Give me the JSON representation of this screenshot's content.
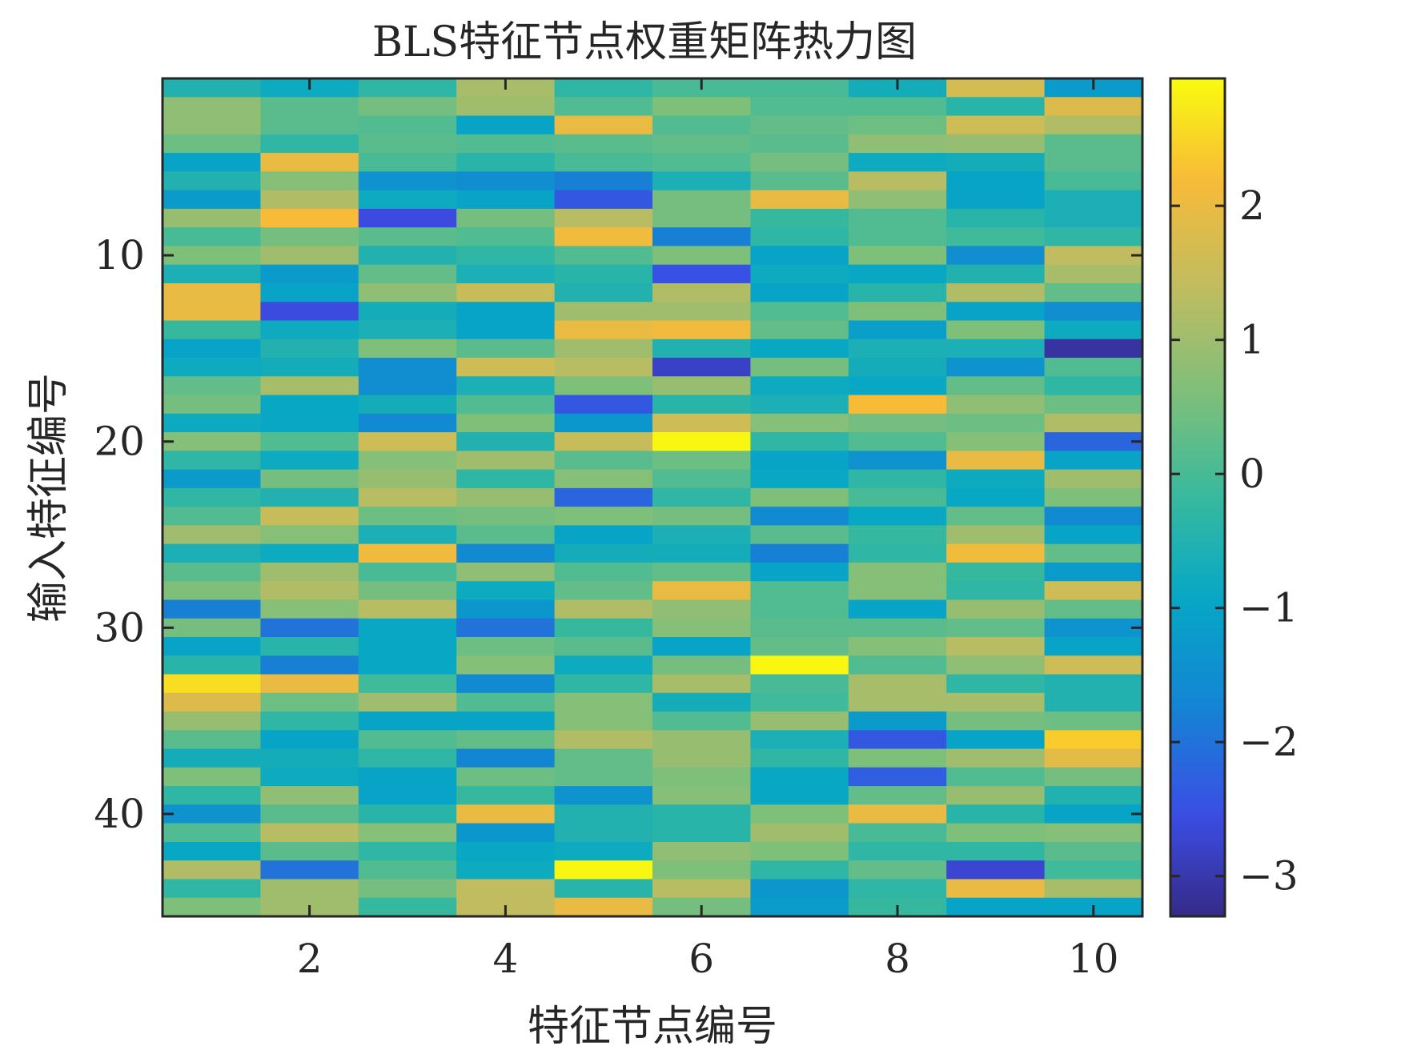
{
  "chart_data": {
    "type": "heatmap",
    "title": "BLS特征节点权重矩阵热力图",
    "xlabel": "特征节点编号",
    "ylabel": "输入特征编号",
    "xlim": [
      0.5,
      10.5
    ],
    "ylim": [
      0.5,
      45.5
    ],
    "y_reversed": true,
    "x_ticks": [
      2,
      4,
      6,
      8,
      10
    ],
    "x_tick_labels": [
      "2",
      "4",
      "6",
      "8",
      "10"
    ],
    "y_ticks": [
      10,
      20,
      30,
      40
    ],
    "y_tick_labels": [
      "10",
      "20",
      "30",
      "40"
    ],
    "colorbar": {
      "range": [
        -3.3,
        2.95
      ],
      "ticks": [
        -3,
        -2,
        -1,
        0,
        1,
        2
      ],
      "tick_labels": [
        "−3",
        "−2",
        "−1",
        "0",
        "1",
        "2"
      ],
      "colormap": "parula"
    },
    "columns": [
      1,
      2,
      3,
      4,
      5,
      6,
      7,
      8,
      9,
      10
    ],
    "rows": [
      1,
      2,
      3,
      4,
      5,
      6,
      7,
      8,
      9,
      10,
      11,
      12,
      13,
      14,
      15,
      16,
      17,
      18,
      19,
      20,
      21,
      22,
      23,
      24,
      25,
      26,
      27,
      28,
      29,
      30,
      31,
      32,
      33,
      34,
      35,
      36,
      37,
      38,
      39,
      40,
      41,
      42,
      43,
      44,
      45
    ],
    "values": [
      [
        -0.5,
        -0.8,
        -0.3,
        1.1,
        -0.3,
        0.0,
        0.0,
        -0.7,
        1.7,
        -1.2
      ],
      [
        0.8,
        0.2,
        0.5,
        1.0,
        0.1,
        0.6,
        0.1,
        0.1,
        -0.4,
        1.8
      ],
      [
        0.8,
        0.2,
        0.1,
        -1.0,
        2.0,
        0.1,
        0.3,
        0.4,
        1.6,
        1.2
      ],
      [
        0.4,
        -0.3,
        0.2,
        0.1,
        0.2,
        0.3,
        0.2,
        0.8,
        0.9,
        0.2
      ],
      [
        -1.0,
        2.0,
        0.0,
        -0.4,
        0.0,
        0.1,
        0.5,
        -0.8,
        -0.7,
        0.2
      ],
      [
        -0.5,
        0.7,
        -1.4,
        -1.5,
        -1.8,
        -0.6,
        0.2,
        1.3,
        -1.0,
        0.0
      ],
      [
        -1.2,
        1.2,
        -0.8,
        -1.0,
        -2.4,
        0.5,
        2.0,
        0.8,
        -1.0,
        -0.6
      ],
      [
        0.9,
        2.2,
        -2.6,
        0.5,
        1.3,
        0.5,
        -0.2,
        0.1,
        -0.4,
        -0.6
      ],
      [
        0.0,
        0.5,
        0.2,
        0.1,
        2.1,
        -1.8,
        -0.3,
        0.1,
        -0.1,
        -0.3
      ],
      [
        0.6,
        1.0,
        -0.5,
        -0.3,
        0.1,
        0.6,
        -1.0,
        0.6,
        -1.5,
        1.4
      ],
      [
        -0.6,
        -1.2,
        0.3,
        -0.6,
        -0.4,
        -2.5,
        -0.8,
        -0.9,
        -0.5,
        1.1
      ],
      [
        2.0,
        -1.0,
        0.8,
        1.5,
        -0.5,
        1.2,
        -1.0,
        -0.4,
        1.2,
        0.3
      ],
      [
        2.0,
        -2.6,
        -0.7,
        -1.0,
        1.0,
        1.0,
        0.1,
        0.6,
        -1.0,
        -1.5
      ],
      [
        -0.2,
        -0.8,
        -0.6,
        -1.0,
        2.0,
        2.1,
        0.3,
        -1.1,
        0.6,
        -0.8
      ],
      [
        -1.0,
        -0.5,
        0.6,
        0.2,
        1.0,
        -0.5,
        -0.9,
        -0.6,
        -0.6,
        -3.1
      ],
      [
        -0.8,
        -0.7,
        -1.5,
        1.6,
        1.3,
        -2.8,
        0.5,
        -0.7,
        -1.4,
        0.1
      ],
      [
        0.3,
        1.1,
        -1.5,
        -0.6,
        0.6,
        0.9,
        -0.8,
        -0.9,
        0.3,
        -0.3
      ],
      [
        0.5,
        -0.9,
        -0.7,
        0.1,
        -2.4,
        -0.4,
        -0.6,
        2.2,
        0.8,
        0.4
      ],
      [
        -0.8,
        -0.9,
        -1.6,
        0.6,
        -1.3,
        1.6,
        0.7,
        0.5,
        0.4,
        1.2
      ],
      [
        0.7,
        0.1,
        1.6,
        -0.5,
        1.5,
        2.9,
        -0.3,
        0.1,
        0.7,
        -2.2
      ],
      [
        -0.3,
        -0.8,
        0.7,
        1.0,
        0.2,
        0.4,
        -1.0,
        -1.4,
        2.0,
        -1.0
      ],
      [
        -1.2,
        0.5,
        0.9,
        -0.3,
        0.7,
        0.1,
        -0.9,
        -0.3,
        -0.8,
        1.0
      ],
      [
        -0.3,
        -0.5,
        1.3,
        0.9,
        -2.2,
        -0.3,
        0.6,
        0.0,
        -0.9,
        0.6
      ],
      [
        0.1,
        1.5,
        0.4,
        0.5,
        0.6,
        0.5,
        -1.6,
        -0.9,
        0.3,
        -1.6
      ],
      [
        1.0,
        0.7,
        -0.6,
        0.2,
        -1.0,
        -0.6,
        0.2,
        -0.2,
        1.0,
        -1.0
      ],
      [
        -0.6,
        -0.8,
        2.1,
        -1.6,
        -0.7,
        -0.7,
        -1.8,
        -0.3,
        2.1,
        0.3
      ],
      [
        0.2,
        1.0,
        0.0,
        0.8,
        0.1,
        0.3,
        -1.0,
        0.7,
        -0.2,
        -1.2
      ],
      [
        0.6,
        1.2,
        0.5,
        -0.8,
        0.3,
        2.0,
        0.1,
        0.7,
        -0.3,
        1.6
      ],
      [
        -1.8,
        0.7,
        1.3,
        -1.3,
        1.2,
        0.8,
        0.1,
        -1.0,
        0.9,
        0.3
      ],
      [
        0.5,
        -2.0,
        -0.9,
        -2.0,
        -0.2,
        0.7,
        0.2,
        0.2,
        0.3,
        -1.4
      ],
      [
        -1.0,
        -0.4,
        -0.9,
        0.4,
        0.2,
        -1.0,
        0.3,
        0.7,
        1.3,
        -1.0
      ],
      [
        -0.4,
        -1.8,
        -0.9,
        0.7,
        -0.8,
        0.5,
        2.9,
        0.1,
        0.8,
        1.6
      ],
      [
        2.6,
        2.0,
        -0.1,
        -1.6,
        -0.3,
        1.1,
        0.0,
        1.1,
        -0.3,
        -0.5
      ],
      [
        1.8,
        0.4,
        1.0,
        0.1,
        0.7,
        -0.7,
        -0.1,
        1.1,
        1.1,
        -0.5
      ],
      [
        0.9,
        -0.3,
        -1.0,
        -1.0,
        0.7,
        0.1,
        0.9,
        -1.2,
        0.5,
        0.4
      ],
      [
        0.2,
        -1.0,
        0.1,
        0.3,
        1.2,
        0.9,
        -0.6,
        -2.4,
        -1.0,
        2.4
      ],
      [
        -0.7,
        -0.7,
        -0.3,
        -1.7,
        0.3,
        0.9,
        -0.3,
        0.6,
        1.0,
        1.9
      ],
      [
        0.6,
        -0.8,
        -1.0,
        0.4,
        0.3,
        0.6,
        -0.9,
        -2.3,
        0.1,
        0.5
      ],
      [
        -0.3,
        0.8,
        -1.0,
        -0.2,
        -1.4,
        0.7,
        -0.9,
        0.3,
        0.9,
        -0.5
      ],
      [
        -1.4,
        0.2,
        -0.4,
        2.0,
        -0.5,
        -0.4,
        0.6,
        2.0,
        -0.4,
        -1.0
      ],
      [
        0.1,
        1.3,
        0.7,
        -1.3,
        -0.5,
        -0.4,
        1.0,
        0.0,
        0.6,
        0.7
      ],
      [
        -0.9,
        0.2,
        -0.3,
        -0.9,
        -0.8,
        0.8,
        0.6,
        -0.3,
        -0.3,
        0.2
      ],
      [
        1.2,
        -2.0,
        0.1,
        -0.8,
        2.9,
        0.6,
        -0.3,
        0.3,
        -2.7,
        -0.1
      ],
      [
        -0.3,
        1.0,
        0.5,
        1.4,
        -0.4,
        1.3,
        -1.3,
        -0.3,
        2.0,
        1.1
      ],
      [
        0.6,
        1.0,
        -0.2,
        1.4,
        2.0,
        0.5,
        -1.2,
        -0.2,
        -1.0,
        -1.0
      ]
    ]
  }
}
